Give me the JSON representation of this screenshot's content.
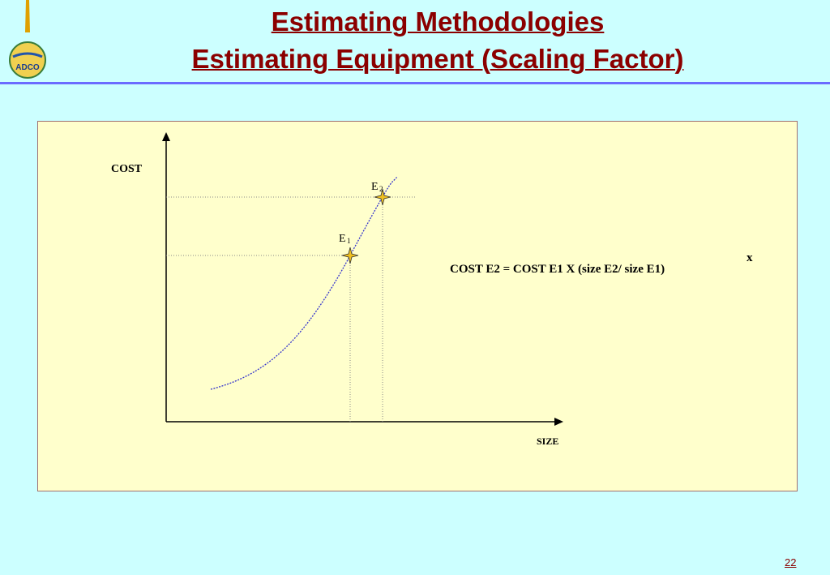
{
  "slide": {
    "title_line1": "Estimating Methodologies ",
    "title_line2": "Estimating Equipment (Scaling Factor)",
    "page_number": "22",
    "logo_text": "ADCO",
    "accent_color": "#8b0000",
    "background_color": "#ccffff",
    "panel_color": "#ffffcc"
  },
  "diagram": {
    "y_axis_label": "COST",
    "x_axis_label": "SIZE",
    "point1_label": "E",
    "point1_subscript": "1",
    "point2_label": "E",
    "point2_subscript": "2",
    "formula": "COST E2 = COST E1 X (size E2/ size E1)",
    "formula_exponent": "x"
  }
}
